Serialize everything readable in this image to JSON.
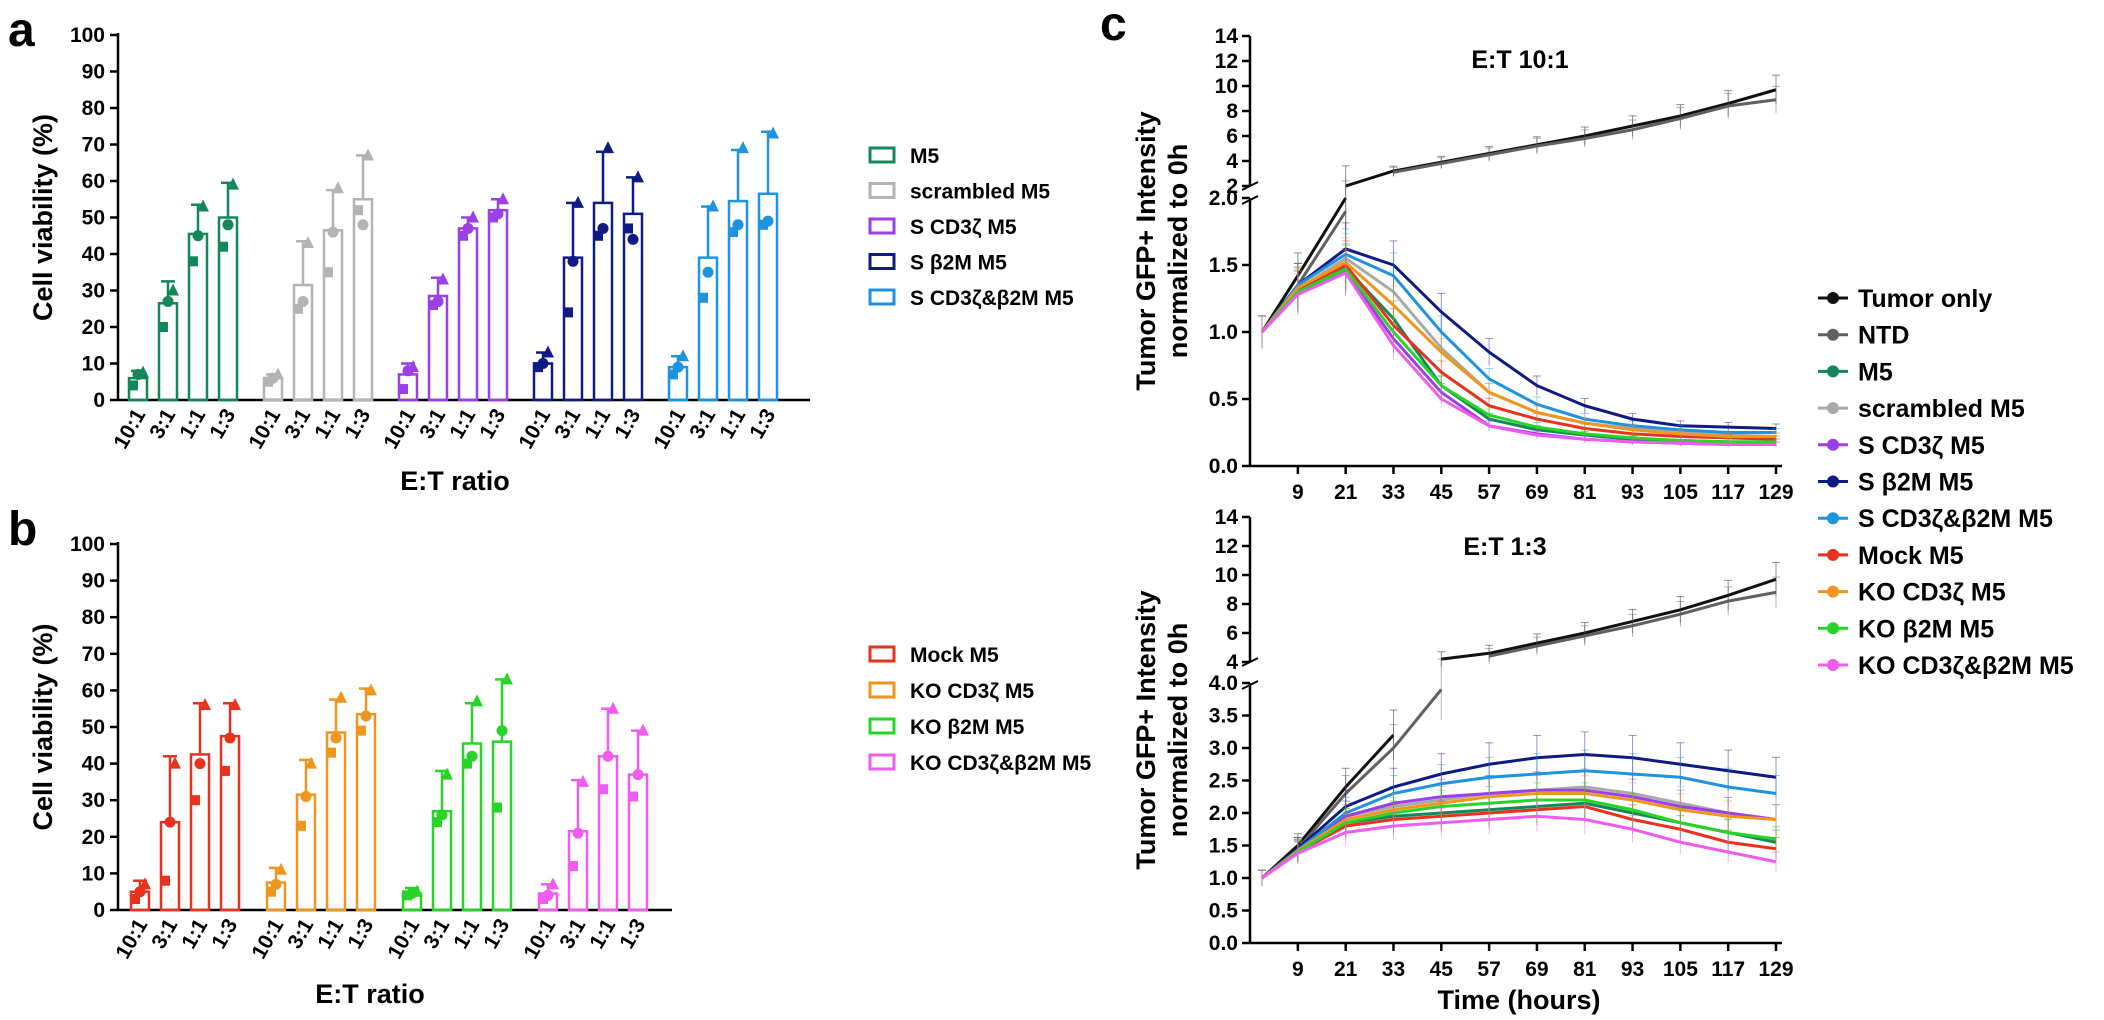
{
  "panel_labels": {
    "a": "a",
    "b": "b",
    "c": "c"
  },
  "chart_data": [
    {
      "id": "a",
      "type": "bar",
      "ylabel": "Cell viability (%)",
      "xlabel": "E:T ratio",
      "ylim": [
        0,
        100
      ],
      "yticks": [
        0,
        10,
        20,
        30,
        40,
        50,
        60,
        70,
        80,
        90,
        100
      ],
      "categories": [
        "10:1",
        "3:1",
        "1:1",
        "1:3"
      ],
      "series": [
        {
          "name": "M5",
          "color": "#12875a",
          "values": [
            6,
            26.5,
            45.5,
            50
          ],
          "sd": [
            2,
            6,
            8,
            9.5
          ],
          "points": [
            [
              4,
              7,
              7.5
            ],
            [
              20,
              27,
              30
            ],
            [
              38,
              45,
              53
            ],
            [
              42,
              48,
              59
            ]
          ]
        },
        {
          "name": "scrambled M5",
          "color": "#b4b4b4",
          "values": [
            6,
            31.5,
            46.5,
            55
          ],
          "sd": [
            1,
            12,
            11,
            12
          ],
          "points": [
            [
              5,
              6,
              7
            ],
            [
              25,
              27,
              43
            ],
            [
              35,
              46,
              58
            ],
            [
              52,
              48,
              67
            ]
          ]
        },
        {
          "name": "S CD3ζ M5",
          "color": "#9b3fe6",
          "values": [
            7,
            28.5,
            47,
            52
          ],
          "sd": [
            3,
            5,
            3,
            3
          ],
          "points": [
            [
              3,
              8,
              9
            ],
            [
              26,
              27,
              33
            ],
            [
              45,
              47,
              50
            ],
            [
              50,
              51,
              55
            ]
          ]
        },
        {
          "name": "S β2M M5",
          "color": "#0d1b82",
          "values": [
            10,
            39,
            54,
            51
          ],
          "sd": [
            3,
            15,
            14,
            10
          ],
          "points": [
            [
              9,
              10,
              13
            ],
            [
              24,
              38,
              54
            ],
            [
              45,
              47,
              69
            ],
            [
              47,
              44,
              61
            ]
          ]
        },
        {
          "name": "S CD3ζ&β2M M5",
          "color": "#1e93e0",
          "values": [
            9,
            39,
            54.5,
            56.5
          ],
          "sd": [
            3,
            14,
            14,
            17
          ],
          "points": [
            [
              7,
              9,
              12
            ],
            [
              28,
              35,
              53
            ],
            [
              46,
              48,
              69
            ],
            [
              48,
              49,
              73
            ]
          ]
        }
      ]
    },
    {
      "id": "b",
      "type": "bar",
      "ylabel": "Cell viability (%)",
      "xlabel": "E:T ratio",
      "ylim": [
        0,
        100
      ],
      "yticks": [
        0,
        10,
        20,
        30,
        40,
        50,
        60,
        70,
        80,
        90,
        100
      ],
      "categories": [
        "10:1",
        "3:1",
        "1:1",
        "1:3"
      ],
      "series": [
        {
          "name": "Mock M5",
          "color": "#e8321e",
          "values": [
            5,
            24,
            42.5,
            47.5
          ],
          "sd": [
            3,
            18,
            14,
            9
          ],
          "points": [
            [
              3,
              5,
              7
            ],
            [
              8,
              24,
              40
            ],
            [
              30,
              40,
              56
            ],
            [
              38,
              47,
              56
            ]
          ]
        },
        {
          "name": "KO CD3ζ M5",
          "color": "#f0961e",
          "values": [
            7.5,
            31.5,
            48.5,
            53.5
          ],
          "sd": [
            4,
            9.5,
            9,
            7
          ],
          "points": [
            [
              5,
              7,
              11
            ],
            [
              23,
              31,
              40
            ],
            [
              43,
              47,
              58
            ],
            [
              49,
              53,
              60
            ]
          ]
        },
        {
          "name": "KO β2M M5",
          "color": "#28d428",
          "values": [
            4.5,
            27,
            45.5,
            46
          ],
          "sd": [
            1.5,
            11,
            11,
            17
          ],
          "points": [
            [
              4,
              4.5,
              5
            ],
            [
              24,
              26,
              37
            ],
            [
              40,
              42,
              57
            ],
            [
              28,
              49,
              63
            ]
          ]
        },
        {
          "name": "KO CD3ζ&β2M M5",
          "color": "#f05cf0",
          "values": [
            4.5,
            21.5,
            42,
            37
          ],
          "sd": [
            2.5,
            14,
            13,
            12
          ],
          "points": [
            [
              3,
              4,
              7
            ],
            [
              12,
              21,
              35
            ],
            [
              33,
              42,
              55
            ],
            [
              31,
              37,
              49
            ]
          ]
        }
      ]
    },
    {
      "id": "c-top",
      "type": "line",
      "title": "E:T 10:1",
      "ylabel": [
        "Tumor GFP+ Intensity",
        "normalized to 0h"
      ],
      "xlabel": "",
      "x": [
        0,
        9,
        21,
        33,
        45,
        57,
        69,
        81,
        93,
        105,
        117,
        129
      ],
      "xticks": [
        9,
        21,
        33,
        45,
        57,
        69,
        81,
        93,
        105,
        117,
        129
      ],
      "ylim_lower": [
        0,
        2.0
      ],
      "yticks_lower": [
        "0.0",
        "0.5",
        "1.0",
        "1.5",
        "2.0"
      ],
      "ylim_upper": [
        2,
        14
      ],
      "yticks_upper": [
        "2",
        "4",
        "6",
        "8",
        "10",
        "12",
        "14"
      ],
      "series": [
        {
          "name": "Tumor only",
          "color": "#111111",
          "values": [
            1.0,
            1.42,
            2.0,
            3.2,
            3.9,
            4.6,
            5.3,
            6.0,
            6.8,
            7.6,
            8.6,
            9.7
          ]
        },
        {
          "name": "NTD",
          "color": "#606060",
          "values": [
            1.0,
            1.35,
            1.9,
            3.1,
            3.8,
            4.5,
            5.2,
            5.8,
            6.5,
            7.4,
            8.4,
            8.9
          ]
        },
        {
          "name": "M5",
          "color": "#12875a",
          "values": [
            1.0,
            1.3,
            1.48,
            1.1,
            0.6,
            0.35,
            0.27,
            0.23,
            0.2,
            0.19,
            0.18,
            0.18
          ]
        },
        {
          "name": "scrambled M5",
          "color": "#a9a9a9",
          "values": [
            1.0,
            1.32,
            1.55,
            1.3,
            0.88,
            0.55,
            0.4,
            0.32,
            0.28,
            0.25,
            0.23,
            0.22
          ]
        },
        {
          "name": "S CD3ζ M5",
          "color": "#9b3fe6",
          "values": [
            1.0,
            1.3,
            1.45,
            0.95,
            0.55,
            0.3,
            0.24,
            0.2,
            0.18,
            0.17,
            0.16,
            0.16
          ]
        },
        {
          "name": "S β2M M5",
          "color": "#0d1b82",
          "values": [
            1.0,
            1.35,
            1.62,
            1.5,
            1.15,
            0.85,
            0.6,
            0.45,
            0.35,
            0.3,
            0.29,
            0.28
          ]
        },
        {
          "name": "S CD3ζ&β2M M5",
          "color": "#1e93e0",
          "values": [
            1.0,
            1.35,
            1.58,
            1.42,
            1.0,
            0.65,
            0.46,
            0.35,
            0.3,
            0.27,
            0.25,
            0.25
          ]
        },
        {
          "name": "Mock M5",
          "color": "#e8321e",
          "values": [
            1.0,
            1.32,
            1.5,
            1.05,
            0.7,
            0.45,
            0.35,
            0.28,
            0.24,
            0.22,
            0.21,
            0.2
          ]
        },
        {
          "name": "KO CD3ζ M5",
          "color": "#f0961e",
          "values": [
            1.0,
            1.33,
            1.52,
            1.2,
            0.85,
            0.55,
            0.4,
            0.32,
            0.27,
            0.24,
            0.22,
            0.22
          ]
        },
        {
          "name": "KO β2M M5",
          "color": "#28d428",
          "values": [
            1.0,
            1.3,
            1.47,
            1.0,
            0.6,
            0.38,
            0.29,
            0.24,
            0.21,
            0.19,
            0.18,
            0.18
          ]
        },
        {
          "name": "KO CD3ζ&β2M M5",
          "color": "#f05cf0",
          "values": [
            1.0,
            1.28,
            1.44,
            0.9,
            0.5,
            0.3,
            0.23,
            0.2,
            0.18,
            0.17,
            0.16,
            0.16
          ]
        }
      ]
    },
    {
      "id": "c-bottom",
      "type": "line",
      "title": "E:T 1:3",
      "ylabel": [
        "Tumor GFP+ Intensity",
        "normalized to 0h"
      ],
      "xlabel": "Time (hours)",
      "x": [
        0,
        9,
        21,
        33,
        45,
        57,
        69,
        81,
        93,
        105,
        117,
        129
      ],
      "xticks": [
        9,
        21,
        33,
        45,
        57,
        69,
        81,
        93,
        105,
        117,
        129
      ],
      "ylim_lower": [
        0,
        4.0
      ],
      "yticks_lower": [
        "0.0",
        "0.5",
        "1.0",
        "1.5",
        "2.0",
        "2.5",
        "3.0",
        "3.5",
        "4.0"
      ],
      "ylim_upper": [
        4,
        14
      ],
      "yticks_upper": [
        "4",
        "6",
        "8",
        "10",
        "12",
        "14"
      ],
      "series": [
        {
          "name": "Tumor only",
          "color": "#111111",
          "values": [
            1.0,
            1.5,
            2.4,
            3.2,
            4.2,
            4.6,
            5.3,
            6.0,
            6.8,
            7.6,
            8.6,
            9.7
          ]
        },
        {
          "name": "NTD",
          "color": "#606060",
          "values": [
            1.0,
            1.45,
            2.3,
            3.0,
            3.9,
            4.4,
            5.1,
            5.8,
            6.5,
            7.3,
            8.2,
            8.8
          ]
        },
        {
          "name": "M5",
          "color": "#12875a",
          "values": [
            1.0,
            1.4,
            1.85,
            1.95,
            2.0,
            2.05,
            2.1,
            2.15,
            2.0,
            1.85,
            1.7,
            1.55
          ]
        },
        {
          "name": "scrambled M5",
          "color": "#a9a9a9",
          "values": [
            1.0,
            1.42,
            1.95,
            2.1,
            2.2,
            2.3,
            2.35,
            2.4,
            2.3,
            2.15,
            2.0,
            1.9
          ]
        },
        {
          "name": "S CD3ζ M5",
          "color": "#9b3fe6",
          "values": [
            1.0,
            1.42,
            1.95,
            2.15,
            2.25,
            2.3,
            2.35,
            2.35,
            2.25,
            2.1,
            2.0,
            1.9
          ]
        },
        {
          "name": "S β2M M5",
          "color": "#0d1b82",
          "values": [
            1.0,
            1.45,
            2.1,
            2.4,
            2.6,
            2.75,
            2.85,
            2.9,
            2.85,
            2.75,
            2.65,
            2.55
          ]
        },
        {
          "name": "S CD3ζ&β2M M5",
          "color": "#1e93e0",
          "values": [
            1.0,
            1.43,
            2.0,
            2.3,
            2.45,
            2.55,
            2.6,
            2.65,
            2.6,
            2.55,
            2.4,
            2.3
          ]
        },
        {
          "name": "Mock M5",
          "color": "#e8321e",
          "values": [
            1.0,
            1.4,
            1.8,
            1.9,
            1.95,
            2.0,
            2.05,
            2.1,
            1.9,
            1.75,
            1.55,
            1.45
          ]
        },
        {
          "name": "KO CD3ζ M5",
          "color": "#f0961e",
          "values": [
            1.0,
            1.42,
            1.9,
            2.05,
            2.15,
            2.25,
            2.3,
            2.3,
            2.2,
            2.05,
            1.95,
            1.9
          ]
        },
        {
          "name": "KO β2M M5",
          "color": "#28d428",
          "values": [
            1.0,
            1.4,
            1.85,
            2.0,
            2.1,
            2.15,
            2.2,
            2.2,
            2.05,
            1.85,
            1.7,
            1.6
          ]
        },
        {
          "name": "KO CD3ζ&β2M M5",
          "color": "#f05cf0",
          "values": [
            1.0,
            1.38,
            1.7,
            1.8,
            1.85,
            1.9,
            1.95,
            1.9,
            1.75,
            1.55,
            1.4,
            1.25
          ]
        }
      ]
    }
  ]
}
